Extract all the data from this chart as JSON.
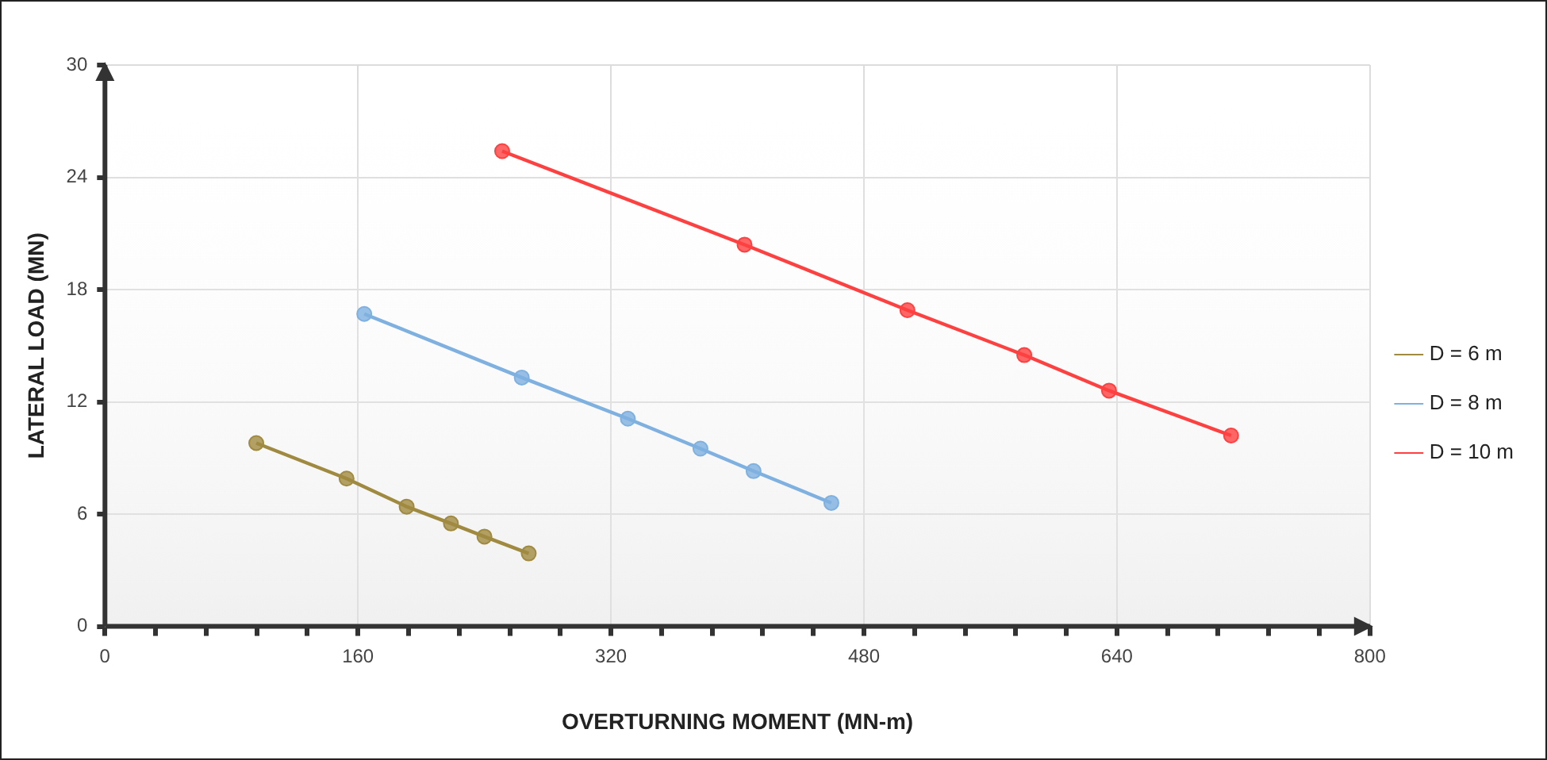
{
  "chart_data": {
    "type": "line",
    "xlabel": "OVERTURNING MOMENT (MN-m)",
    "ylabel": "LATERAL LOAD (MN)",
    "series": [
      {
        "name": "D = 6 m",
        "color": "#a08a40",
        "x": [
          95.7,
          152.8,
          190.8,
          218.8,
          240,
          268
        ],
        "values": [
          9.8,
          7.9,
          6.4,
          5.5,
          4.8,
          3.9
        ]
      },
      {
        "name": "D = 8 m",
        "color": "#7eb0e0",
        "x": [
          164,
          263.6,
          330.7,
          376.6,
          410.2,
          459.4
        ],
        "values": [
          16.7,
          13.3,
          11.1,
          9.5,
          8.3,
          6.6
        ]
      },
      {
        "name": "D = 10 m",
        "color": "#ff4040",
        "x": [
          251.2,
          404.5,
          507.5,
          581.4,
          635,
          712.2
        ],
        "values": [
          25.4,
          20.4,
          16.9,
          14.5,
          12.6,
          10.2
        ]
      }
    ],
    "xlim": [
      0,
      800
    ],
    "xticks": [
      0,
      {
        "value": 32,
        "label": null
      },
      {
        "value": 64,
        "label": null
      },
      {
        "value": 96,
        "label": null
      },
      {
        "value": 128,
        "label": null
      },
      160,
      {
        "value": 192,
        "label": null
      },
      {
        "value": 224,
        "label": null
      },
      {
        "value": 256,
        "label": null
      },
      {
        "value": 288,
        "label": null
      },
      320,
      {
        "value": 352,
        "label": null
      },
      {
        "value": 384,
        "label": null
      },
      {
        "value": 416,
        "label": null
      },
      {
        "value": 448,
        "label": null
      },
      480,
      {
        "value": 512,
        "label": null
      },
      {
        "value": 544,
        "label": null
      },
      {
        "value": 576,
        "label": null
      },
      {
        "value": 608,
        "label": null
      },
      640,
      {
        "value": 672,
        "label": null
      },
      {
        "value": 704,
        "label": null
      },
      {
        "value": 736,
        "label": null
      },
      {
        "value": 768,
        "label": null
      },
      800
    ],
    "ylim": [
      0,
      30
    ],
    "yticks": [
      0,
      6,
      12,
      18,
      24,
      30
    ],
    "grid": true,
    "legend": "right",
    "marker": "circle",
    "line_style": "solid"
  }
}
